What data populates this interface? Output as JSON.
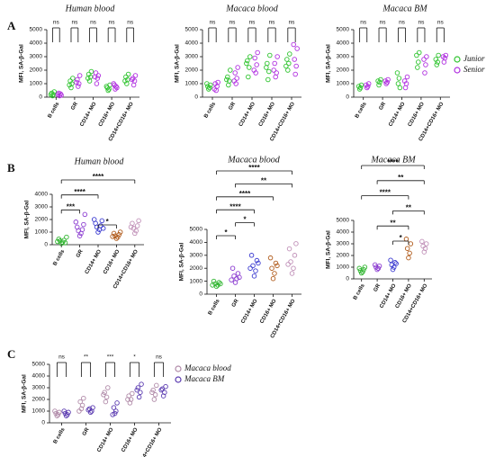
{
  "chart_data": [
    {
      "type": "dotplot",
      "panel": "A",
      "title": "Human blood",
      "ylabel": "MFI, SA-β-Gal",
      "categories": [
        "B cells",
        "GR",
        "CD14+ MO",
        "CD16+ MO",
        "CD14+CD16+ MO"
      ],
      "ylim": [
        0,
        5000
      ],
      "yticks": [
        0,
        1000,
        2000,
        3000,
        4000,
        5000
      ],
      "series": [
        {
          "name": "Junior",
          "color": "#2fc42f",
          "values": [
            [
              100,
              200,
              300,
              400,
              200
            ],
            [
              700,
              1000,
              1200,
              1400,
              900
            ],
            [
              1200,
              1500,
              1700,
              1900,
              1400
            ],
            [
              500,
              600,
              700,
              900,
              800
            ],
            [
              1000,
              1300,
              1500,
              1700,
              1200
            ]
          ]
        },
        {
          "name": "Senior",
          "color": "#b030e0",
          "values": [
            [
              100,
              250,
              300,
              150,
              200
            ],
            [
              800,
              1000,
              1300,
              1600,
              1100
            ],
            [
              1000,
              1400,
              1800,
              1600,
              1500
            ],
            [
              600,
              800,
              900,
              700,
              1000
            ],
            [
              900,
              1200,
              1400,
              1600,
              1300
            ]
          ]
        }
      ],
      "significance": [
        "ns",
        "ns",
        "ns",
        "ns",
        "ns"
      ]
    },
    {
      "type": "dotplot",
      "title": "Macaca blood",
      "ylabel": "MFI, SA-β-Gal",
      "categories": [
        "B cells",
        "GR",
        "CD14+ MO",
        "CD16+ MO",
        "CD14+CD16+ MO"
      ],
      "ylim": [
        0,
        5000
      ],
      "yticks": [
        0,
        1000,
        2000,
        3000,
        4000,
        5000
      ],
      "series": [
        {
          "name": "Junior",
          "color": "#2fc42f",
          "values": [
            [
              600,
              700,
              800,
              900,
              1000
            ],
            [
              900,
              1200,
              1500,
              2000,
              1300
            ],
            [
              1500,
              2200,
              2700,
              3000,
              2500
            ],
            [
              1300,
              1900,
              2500,
              3100,
              2200
            ],
            [
              2000,
              2500,
              2800,
              3200,
              2300
            ]
          ]
        },
        {
          "name": "Senior",
          "color": "#b030e0",
          "values": [
            [
              500,
              800,
              1000,
              1100,
              600
            ],
            [
              1000,
              1400,
              1800,
              2200,
              1200
            ],
            [
              1800,
              2400,
              2900,
              3300,
              2000
            ],
            [
              1500,
              1800,
              2500,
              3000,
              2000
            ],
            [
              1700,
              2300,
              2800,
              3600,
              3900
            ]
          ]
        }
      ],
      "significance": [
        "ns",
        "ns",
        "ns",
        "ns",
        "ns"
      ]
    },
    {
      "type": "dotplot",
      "title": "Macaca BM",
      "ylabel": "MFI, SA-β-Gal",
      "legend": "right",
      "categories": [
        "B cells",
        "GR",
        "CD14+ MO",
        "CD16+ MO",
        "CD14+CD16+ MO"
      ],
      "ylim": [
        0,
        5000
      ],
      "yticks": [
        0,
        1000,
        2000,
        3000,
        4000,
        5000
      ],
      "series": [
        {
          "name": "Junior",
          "color": "#2fc42f",
          "values": [
            [
              600,
              700,
              800,
              900
            ],
            [
              900,
              1100,
              1200,
              1300
            ],
            [
              1000,
              1400,
              1800,
              700
            ],
            [
              2200,
              2600,
              3100,
              3300
            ],
            [
              2400,
              2600,
              2800,
              3100
            ]
          ]
        },
        {
          "name": "Senior",
          "color": "#b030e0",
          "values": [
            [
              700,
              800,
              900,
              1000
            ],
            [
              1000,
              1100,
              1200,
              1300
            ],
            [
              700,
              1000,
              1200,
              1500
            ],
            [
              1800,
              2400,
              2800,
              3000
            ],
            [
              2600,
              2900,
              3000,
              3100
            ]
          ]
        }
      ],
      "significance": [
        "ns",
        "ns",
        "ns",
        "ns",
        "ns"
      ]
    },
    {
      "type": "dotplot",
      "panel": "B",
      "title": "Human blood",
      "ylabel": "MFI, SA-β-Gal",
      "categories": [
        "B cells",
        "GR",
        "CD14+ MO",
        "CD16+ MO",
        "CD14+CD16+ MO"
      ],
      "ylim": [
        0,
        4000
      ],
      "yticks": [
        0,
        1000,
        2000,
        3000,
        4000
      ],
      "series": [
        {
          "colors": [
            "#2fb52f",
            "#8a3ad0",
            "#3a3ad0",
            "#b05a1a",
            "#c090b8"
          ],
          "values": [
            [
              100,
              200,
              300,
              350,
              450,
              150,
              250,
              600
            ],
            [
              700,
              900,
              1100,
              1200,
              1400,
              1600,
              1800,
              2400
            ],
            [
              1000,
              1200,
              1400,
              1500,
              1700,
              1900,
              2000,
              1300
            ],
            [
              500,
              600,
              700,
              800,
              900,
              1000,
              650
            ],
            [
              900,
              1100,
              1300,
              1500,
              1700,
              1900,
              1400
            ]
          ]
        }
      ],
      "comparisons": [
        {
          "label": "*",
          "between": [
            "CD14+ MO",
            "CD16+ MO"
          ]
        },
        {
          "label": "***",
          "between": [
            "B cells",
            "GR"
          ]
        },
        {
          "label": "****",
          "between": [
            "B cells",
            "CD14+ MO"
          ]
        },
        {
          "label": "****",
          "between": [
            "B cells",
            "CD14+CD16+ MO"
          ]
        }
      ]
    },
    {
      "type": "dotplot",
      "title": "Macaca blood",
      "ylabel": "MFI, SA-β-Gal",
      "categories": [
        "B cells",
        "GR",
        "CD14+ MO",
        "CD16+ MO",
        "CD14+CD16+ MO"
      ],
      "ylim": [
        0,
        5000
      ],
      "yticks": [
        0,
        1000,
        2000,
        3000,
        4000,
        5000
      ],
      "series": [
        {
          "colors": [
            "#2fb52f",
            "#8a3ad0",
            "#3a3ad0",
            "#b05a1a",
            "#c090b8"
          ],
          "values": [
            [
              600,
              700,
              800,
              900,
              1000,
              800,
              700
            ],
            [
              900,
              1200,
              1400,
              1600,
              2000,
              1300,
              1100
            ],
            [
              1400,
              1800,
              2200,
              2600,
              3000,
              2400,
              2000
            ],
            [
              1200,
              1600,
              2000,
              2400,
              2800,
              2200
            ],
            [
              1600,
              2000,
              2500,
              3000,
              3500,
              3900,
              2300
            ]
          ]
        }
      ],
      "comparisons": [
        {
          "label": "*",
          "between": [
            "B cells",
            "GR"
          ]
        },
        {
          "label": "*",
          "between": [
            "GR",
            "CD14+ MO"
          ]
        },
        {
          "label": "****",
          "between": [
            "B cells",
            "CD14+ MO"
          ]
        },
        {
          "label": "****",
          "between": [
            "B cells",
            "CD16+ MO"
          ]
        },
        {
          "label": "**",
          "between": [
            "GR",
            "CD14+CD16+ MO"
          ]
        },
        {
          "label": "****",
          "between": [
            "B cells",
            "CD14+CD16+ MO"
          ]
        }
      ]
    },
    {
      "type": "dotplot",
      "title": "Macaca BM",
      "ylabel": "MFI, SA-β-Gal",
      "categories": [
        "B cells",
        "GR",
        "CD14+ MO",
        "CD16+ MO",
        "CD14+CD16+ MO"
      ],
      "ylim": [
        0,
        5000
      ],
      "yticks": [
        0,
        1000,
        2000,
        3000,
        4000,
        5000
      ],
      "series": [
        {
          "colors": [
            "#2fb52f",
            "#8a3ad0",
            "#3a3ad0",
            "#b05a1a",
            "#c090b8"
          ],
          "values": [
            [
              500,
              600,
              700,
              800,
              900,
              1000
            ],
            [
              800,
              900,
              1000,
              1100,
              1200
            ],
            [
              800,
              1000,
              1200,
              1400,
              1600,
              1300
            ],
            [
              1800,
              2200,
              2600,
              3000,
              3400
            ],
            [
              2300,
              2600,
              2800,
              3000,
              3200
            ]
          ]
        }
      ],
      "comparisons": [
        {
          "label": "*",
          "between": [
            "CD14+ MO",
            "CD16+ MO"
          ]
        },
        {
          "label": "**",
          "between": [
            "GR",
            "CD16+ MO"
          ]
        },
        {
          "label": "**",
          "between": [
            "CD14+ MO",
            "CD14+CD16+ MO"
          ]
        },
        {
          "label": "****",
          "between": [
            "B cells",
            "CD16+ MO"
          ]
        },
        {
          "label": "**",
          "between": [
            "GR",
            "CD14+CD16+ MO"
          ]
        },
        {
          "label": "****",
          "between": [
            "B cells",
            "CD14+CD16+ MO"
          ]
        }
      ]
    },
    {
      "type": "dotplot",
      "panel": "C",
      "ylabel": "MFI, SA-β-Gal",
      "legend": "right",
      "categories": [
        "B cells",
        "GR",
        "CD14+ MO",
        "CD16+ MO",
        "CD14+CD16+ MO"
      ],
      "ylim": [
        0,
        5000
      ],
      "yticks": [
        0,
        1000,
        2000,
        3000,
        4000,
        5000
      ],
      "series": [
        {
          "name": "Macaca blood",
          "color": "#b08aa8",
          "values": [
            [
              600,
              700,
              800,
              900,
              1000
            ],
            [
              1200,
              1500,
              1800,
              2100,
              1000
            ],
            [
              1800,
              2200,
              2600,
              3000,
              2400
            ],
            [
              1700,
              2000,
              2300,
              2500,
              2000
            ],
            [
              2000,
              2400,
              2800,
              3200,
              2600
            ]
          ]
        },
        {
          "name": "Macaca BM",
          "color": "#5a3ab0",
          "values": [
            [
              600,
              700,
              800,
              900,
              1000
            ],
            [
              900,
              1000,
              1200,
              1300,
              1100
            ],
            [
              800,
              1000,
              1300,
              1700,
              700
            ],
            [
              2200,
              2600,
              3000,
              3300,
              2800
            ],
            [
              2300,
              2600,
              2900,
              3100,
              2800
            ]
          ]
        }
      ],
      "significance": [
        "ns",
        "**",
        "***",
        "*",
        "ns"
      ]
    }
  ]
}
